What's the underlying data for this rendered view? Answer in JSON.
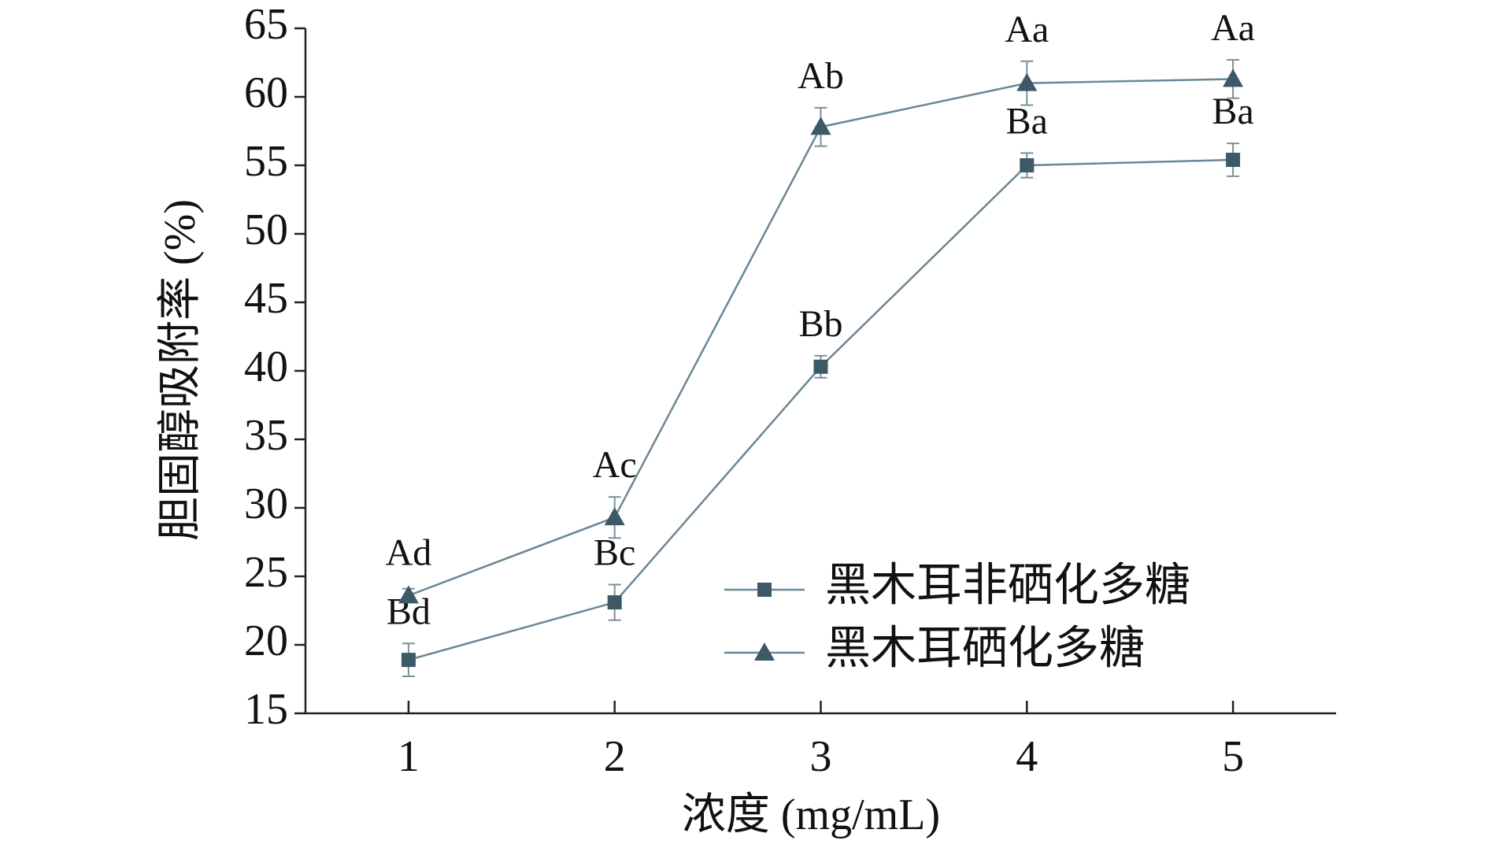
{
  "chart_data": {
    "type": "line",
    "xlabel": "浓度 (mg/mL)",
    "ylabel": "胆固醇吸附率 (%)",
    "x": [
      1,
      2,
      3,
      4,
      5
    ],
    "xlim": [
      0.5,
      5.5
    ],
    "xticks": [
      1,
      2,
      3,
      4,
      5
    ],
    "ylim": [
      15,
      65
    ],
    "yticks": [
      15,
      20,
      25,
      30,
      35,
      40,
      45,
      50,
      55,
      60,
      65
    ],
    "legend": "lower right",
    "series": [
      {
        "name": "黑木耳非硒化多糖",
        "color": "#3d5866",
        "marker": "square",
        "values": [
          18.9,
          23.1,
          40.3,
          55.0,
          55.4
        ],
        "errors": [
          1.2,
          1.3,
          0.8,
          0.9,
          1.2
        ],
        "letters": [
          "Bd",
          "Bc",
          "Bb",
          "Ba",
          "Ba"
        ]
      },
      {
        "name": "黑木耳硒化多糖",
        "color": "#3d5866",
        "marker": "triangle",
        "values": [
          23.6,
          29.3,
          57.8,
          61.0,
          61.3
        ],
        "errors": [
          0.5,
          1.5,
          1.4,
          1.6,
          1.4
        ],
        "letters": [
          "Ad",
          "Ac",
          "Ab",
          "Aa",
          "Aa"
        ]
      }
    ]
  }
}
